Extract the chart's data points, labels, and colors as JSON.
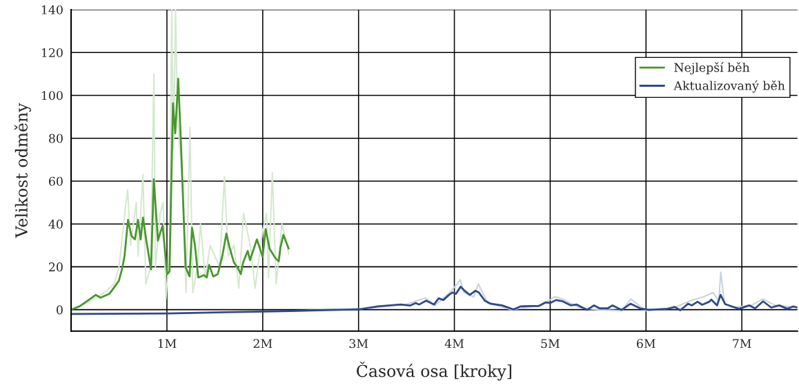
{
  "chart_data": {
    "type": "line",
    "xlabel": "Časová osa [kroky]",
    "ylabel": "Velikost odměny",
    "xlim": [
      0,
      7.58
    ],
    "ylim": [
      -10,
      140
    ],
    "xticks": [
      {
        "value": 1,
        "label": "1M"
      },
      {
        "value": 2,
        "label": "2M"
      },
      {
        "value": 3,
        "label": "3M"
      },
      {
        "value": 4,
        "label": "4M"
      },
      {
        "value": 5,
        "label": "5M"
      },
      {
        "value": 6,
        "label": "6M"
      },
      {
        "value": 7,
        "label": "7M"
      }
    ],
    "yticks": [
      0,
      20,
      40,
      60,
      80,
      100,
      120,
      140
    ],
    "grid": true,
    "legend": "top right",
    "series": [
      {
        "color": "#d5e8cf",
        "x": [
          0,
          0.2,
          0.35,
          0.45,
          0.5,
          0.56,
          0.59,
          0.62,
          0.68,
          0.7,
          0.75,
          0.78,
          0.83,
          0.864,
          0.88,
          0.93,
          0.96,
          0.99,
          1.03,
          1.05,
          1.07,
          1.09,
          1.11,
          1.16,
          1.2,
          1.24,
          1.27,
          1.32,
          1.35,
          1.4,
          1.45,
          1.55,
          1.6,
          1.64,
          1.7,
          1.75,
          1.8,
          1.87,
          1.92,
          2.0,
          2.04,
          2.06,
          2.1,
          2.14,
          2.2,
          2.24,
          2.27
        ],
        "values": [
          0,
          4,
          8,
          12,
          20,
          45,
          56,
          30,
          50,
          25,
          63,
          12,
          20,
          110,
          20,
          45,
          50,
          5,
          30,
          140,
          75,
          140,
          90,
          60,
          8,
          85,
          8,
          20,
          40,
          15,
          30,
          20,
          62,
          25,
          30,
          10,
          45,
          30,
          10,
          37,
          45,
          15,
          64,
          12,
          40,
          33,
          26
        ]
      },
      {
        "color": "#c9d2e3",
        "x": [
          2.3,
          3.0,
          3.5,
          3.7,
          3.8,
          3.95,
          4.03,
          4.06,
          4.1,
          4.2,
          4.25,
          4.35,
          4.6,
          4.9,
          5.05,
          5.13,
          5.3,
          5.5,
          5.75,
          5.84,
          6.0,
          6.3,
          6.45,
          6.6,
          6.7,
          6.76,
          6.78,
          6.82,
          6.9,
          7.1,
          7.22,
          7.35,
          7.58
        ],
        "values": [
          -0.6,
          0.3,
          2.5,
          5.5,
          2,
          8,
          12,
          14,
          8,
          6,
          12,
          3,
          0,
          2,
          6,
          5,
          1,
          0,
          -0.5,
          5,
          -0.5,
          1,
          4,
          6,
          8,
          4,
          17.5,
          3,
          1,
          2,
          5,
          2,
          1
        ]
      },
      {
        "name": "Nejlepší běh",
        "color": "#4a962f",
        "x": [
          0,
          0.09,
          0.258,
          0.306,
          0.4,
          0.498,
          0.534,
          0.558,
          0.594,
          0.63,
          0.666,
          0.698,
          0.726,
          0.75,
          0.787,
          0.834,
          0.863,
          0.906,
          0.931,
          0.955,
          1.003,
          1.027,
          1.063,
          1.087,
          1.118,
          1.147,
          1.195,
          1.236,
          1.262,
          1.291,
          1.327,
          1.387,
          1.416,
          1.44,
          1.483,
          1.531,
          1.579,
          1.62,
          1.651,
          1.699,
          1.735,
          1.771,
          1.795,
          1.843,
          1.867,
          1.939,
          1.999,
          2.03,
          2.071,
          2.131,
          2.167,
          2.185,
          2.215,
          2.271
        ],
        "values": [
          0,
          1.6,
          6.9,
          5.6,
          7.4,
          13.4,
          19.4,
          25.2,
          41.9,
          34.4,
          32.8,
          41.9,
          32.8,
          43,
          31.7,
          18.8,
          60.8,
          32.2,
          36,
          39.2,
          16.6,
          17.8,
          96.3,
          82.3,
          107.7,
          77,
          19.8,
          15.5,
          38.2,
          30.6,
          15,
          16.1,
          15,
          20.9,
          15.5,
          16.6,
          25.2,
          35.5,
          29.5,
          22,
          19.8,
          16.6,
          22,
          27.4,
          23.1,
          32.8,
          24.7,
          37.6,
          28.5,
          24.1,
          22.5,
          29,
          34.9,
          28.5
        ]
      },
      {
        "name": "Aktualizovaný běh",
        "color": "#2f4a87",
        "x": [
          0,
          1.0,
          1.6,
          2.0,
          2.287,
          3.01,
          3.2,
          3.44,
          3.536,
          3.597,
          3.633,
          3.705,
          3.788,
          3.836,
          3.885,
          3.944,
          3.98,
          4.017,
          4.065,
          4.1,
          4.161,
          4.22,
          4.256,
          4.317,
          4.377,
          4.497,
          4.617,
          4.689,
          4.785,
          4.881,
          4.953,
          5.0,
          5.06,
          5.13,
          5.217,
          5.277,
          5.385,
          5.457,
          5.518,
          5.6,
          5.65,
          5.746,
          5.84,
          5.938,
          6.034,
          6.226,
          6.3,
          6.358,
          6.44,
          6.478,
          6.538,
          6.586,
          6.66,
          6.682,
          6.742,
          6.778,
          6.826,
          6.898,
          6.97,
          7.078,
          7.139,
          7.222,
          7.307,
          7.39,
          7.475,
          7.535,
          7.58
        ],
        "values": [
          -2,
          -1.8,
          -1.2,
          -0.9,
          -0.6,
          0.2,
          1.5,
          2.4,
          1.9,
          3.1,
          2.4,
          4.2,
          2.4,
          5.3,
          4.5,
          6.9,
          8,
          7.4,
          10.7,
          9.1,
          6.9,
          8.8,
          8,
          4.2,
          2.8,
          2,
          0.1,
          1.5,
          1.7,
          1.7,
          3.4,
          3.1,
          4.5,
          3.9,
          2,
          2.4,
          -0.1,
          2,
          0.6,
          0.6,
          2,
          -0.1,
          2.8,
          0.6,
          -0.1,
          0.4,
          1.3,
          -0.3,
          2.8,
          2,
          3.7,
          2.3,
          3.7,
          4.7,
          2,
          6.9,
          2.6,
          1.5,
          0.4,
          2,
          0.6,
          3.9,
          1,
          2,
          0.4,
          1.5,
          1
        ]
      }
    ]
  }
}
